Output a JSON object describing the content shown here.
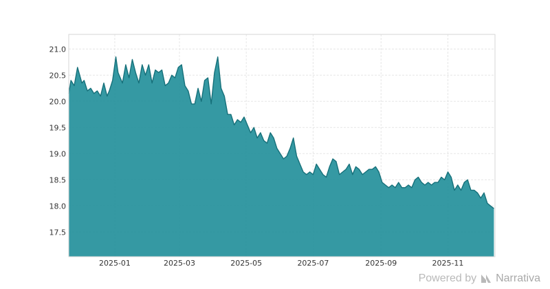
{
  "footer": {
    "powered_text": "Powered by",
    "brand_text": "Narrativa",
    "brand_icon": "narrativa-logo-icon"
  },
  "chart_data": {
    "type": "area",
    "title": "",
    "xlabel": "",
    "ylabel": "",
    "color": "#1f8e99",
    "grid": true,
    "legend": "none",
    "xlim": [
      "2024-11-20",
      "2025-12-14"
    ],
    "ylim": [
      17.03,
      21.28
    ],
    "x_ticks": [
      {
        "date": "2025-01-01",
        "label": "2025-01"
      },
      {
        "date": "2025-03-01",
        "label": "2025-03"
      },
      {
        "date": "2025-05-01",
        "label": "2025-05"
      },
      {
        "date": "2025-07-01",
        "label": "2025-07"
      },
      {
        "date": "2025-09-01",
        "label": "2025-09"
      },
      {
        "date": "2025-11-01",
        "label": "2025-11"
      }
    ],
    "y_ticks": [
      17.5,
      18.0,
      18.5,
      19.0,
      19.5,
      20.0,
      20.5,
      21.0
    ],
    "series": [
      {
        "x": [
          "2024-11-20",
          "2024-11-22",
          "2024-11-25",
          "2024-11-28",
          "2024-12-02",
          "2024-12-04",
          "2024-12-07",
          "2024-12-10",
          "2024-12-13",
          "2024-12-16",
          "2024-12-19",
          "2024-12-22",
          "2024-12-25",
          "2024-12-27",
          "2024-12-30",
          "2025-01-02",
          "2025-01-04",
          "2025-01-08",
          "2025-01-11",
          "2025-01-14",
          "2025-01-17",
          "2025-01-20",
          "2025-01-23",
          "2025-01-26",
          "2025-01-29",
          "2025-02-01",
          "2025-02-04",
          "2025-02-07",
          "2025-02-10",
          "2025-02-13",
          "2025-02-16",
          "2025-02-19",
          "2025-02-22",
          "2025-02-25",
          "2025-02-28",
          "2025-03-03",
          "2025-03-06",
          "2025-03-09",
          "2025-03-12",
          "2025-03-15",
          "2025-03-18",
          "2025-03-21",
          "2025-03-24",
          "2025-03-27",
          "2025-03-30",
          "2025-04-02",
          "2025-04-05",
          "2025-04-08",
          "2025-04-11",
          "2025-04-14",
          "2025-04-17",
          "2025-04-20",
          "2025-04-23",
          "2025-04-26",
          "2025-04-29",
          "2025-05-02",
          "2025-05-05",
          "2025-05-08",
          "2025-05-11",
          "2025-05-14",
          "2025-05-17",
          "2025-05-20",
          "2025-05-23",
          "2025-05-26",
          "2025-05-29",
          "2025-06-01",
          "2025-06-04",
          "2025-06-07",
          "2025-06-10",
          "2025-06-13",
          "2025-06-16",
          "2025-06-19",
          "2025-06-22",
          "2025-06-25",
          "2025-06-28",
          "2025-07-01",
          "2025-07-04",
          "2025-07-07",
          "2025-07-10",
          "2025-07-13",
          "2025-07-16",
          "2025-07-19",
          "2025-07-22",
          "2025-07-25",
          "2025-07-28",
          "2025-07-31",
          "2025-08-03",
          "2025-08-06",
          "2025-08-09",
          "2025-08-12",
          "2025-08-15",
          "2025-08-18",
          "2025-08-21",
          "2025-08-24",
          "2025-08-27",
          "2025-08-30",
          "2025-09-02",
          "2025-09-05",
          "2025-09-08",
          "2025-09-11",
          "2025-09-14",
          "2025-09-17",
          "2025-09-20",
          "2025-09-23",
          "2025-09-26",
          "2025-09-29",
          "2025-10-02",
          "2025-10-05",
          "2025-10-08",
          "2025-10-11",
          "2025-10-14",
          "2025-10-17",
          "2025-10-20",
          "2025-10-23",
          "2025-10-26",
          "2025-10-29",
          "2025-11-01",
          "2025-11-04",
          "2025-11-07",
          "2025-11-10",
          "2025-11-13",
          "2025-11-16",
          "2025-11-19",
          "2025-11-22",
          "2025-11-25",
          "2025-11-28",
          "2025-12-01",
          "2025-12-04",
          "2025-12-07",
          "2025-12-10",
          "2025-12-13"
        ],
        "values": [
          20.15,
          20.4,
          20.3,
          20.65,
          20.35,
          20.4,
          20.2,
          20.25,
          20.15,
          20.2,
          20.1,
          20.35,
          20.1,
          20.2,
          20.4,
          20.85,
          20.55,
          20.35,
          20.7,
          20.45,
          20.8,
          20.55,
          20.35,
          20.7,
          20.5,
          20.7,
          20.35,
          20.6,
          20.55,
          20.6,
          20.3,
          20.35,
          20.5,
          20.45,
          20.65,
          20.7,
          20.3,
          20.2,
          19.95,
          19.95,
          20.25,
          20.0,
          20.4,
          20.45,
          19.95,
          20.55,
          20.85,
          20.25,
          20.1,
          19.75,
          19.75,
          19.55,
          19.65,
          19.6,
          19.7,
          19.55,
          19.4,
          19.5,
          19.3,
          19.4,
          19.25,
          19.2,
          19.4,
          19.3,
          19.1,
          19.0,
          18.9,
          18.95,
          19.1,
          19.3,
          18.95,
          18.8,
          18.65,
          18.6,
          18.65,
          18.6,
          18.8,
          18.7,
          18.6,
          18.55,
          18.75,
          18.9,
          18.85,
          18.6,
          18.65,
          18.7,
          18.8,
          18.6,
          18.75,
          18.7,
          18.6,
          18.65,
          18.7,
          18.7,
          18.75,
          18.65,
          18.45,
          18.4,
          18.35,
          18.4,
          18.35,
          18.45,
          18.35,
          18.35,
          18.4,
          18.35,
          18.5,
          18.55,
          18.45,
          18.4,
          18.45,
          18.4,
          18.45,
          18.45,
          18.55,
          18.5,
          18.65,
          18.55,
          18.3,
          18.4,
          18.3,
          18.45,
          18.5,
          18.3,
          18.3,
          18.25,
          18.15,
          18.25,
          18.05,
          18.0,
          17.95
        ]
      }
    ]
  }
}
